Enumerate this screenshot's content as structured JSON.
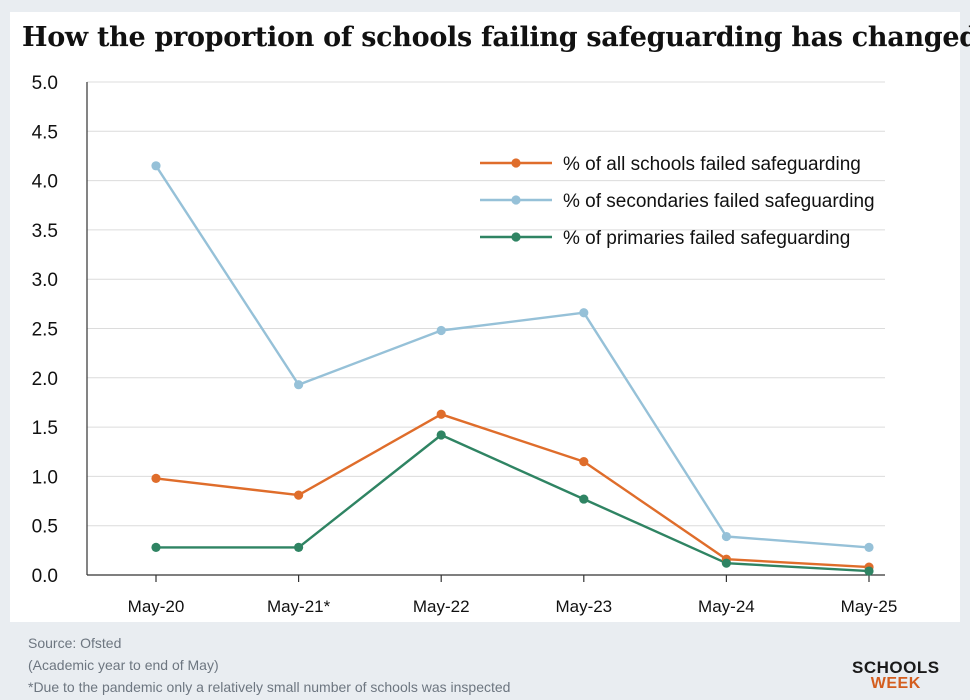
{
  "chart_data": {
    "type": "line",
    "title": "How the proportion of schools failing safeguarding has changed",
    "categories": [
      "May-20",
      "May-21*",
      "May-22",
      "May-23",
      "May-24",
      "May-25"
    ],
    "ylim": [
      0,
      5
    ],
    "yticks": [
      "0.0",
      "0.5",
      "1.0",
      "1.5",
      "2.0",
      "2.5",
      "3.0",
      "3.5",
      "4.0",
      "4.5",
      "5.0"
    ],
    "xlabel": "",
    "ylabel": "",
    "grid": "horizontal",
    "legend": "top-right",
    "series": [
      {
        "name": "% of all schools failed safeguarding",
        "color": "#df6d2b",
        "values": [
          0.98,
          0.81,
          1.63,
          1.15,
          0.16,
          0.08
        ]
      },
      {
        "name": "% of secondaries failed safeguarding",
        "color": "#96c1d8",
        "values": [
          4.15,
          1.93,
          2.48,
          2.66,
          0.39,
          0.28
        ]
      },
      {
        "name": "% of primaries failed safeguarding",
        "color": "#2f8463",
        "values": [
          0.28,
          0.28,
          1.42,
          0.77,
          0.12,
          0.04
        ]
      }
    ]
  },
  "footer": {
    "source": "Source: Ofsted",
    "note1": "(Academic year to end of May)",
    "note2": "*Due to the pandemic only a relatively small number of schools was inspected"
  },
  "logo": {
    "line1": "SCHOOLS",
    "line2": "WEEK"
  }
}
